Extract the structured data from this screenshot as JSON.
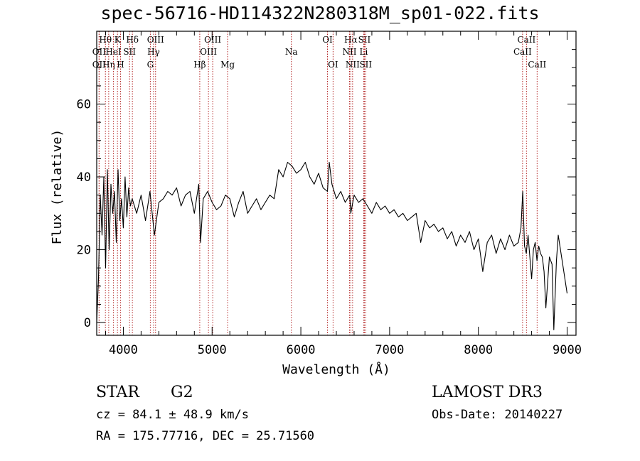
{
  "chart_data": {
    "type": "line",
    "title": "spec-56716-HD114322N280318M_sp01-022.fits",
    "xlabel": "Wavelength (Å)",
    "ylabel": "Flux (relative)",
    "xlim": [
      3700,
      9100
    ],
    "ylim": [
      -3.5,
      80
    ],
    "xticks": [
      4000,
      5000,
      6000,
      7000,
      8000,
      9000
    ],
    "xtick_labels": [
      "4000",
      "5000",
      "6000",
      "7000",
      "8000",
      "9000"
    ],
    "yticks": [
      0,
      20,
      40,
      60
    ],
    "ytick_labels": [
      "0",
      "20",
      "40",
      "60"
    ],
    "series": [
      {
        "name": "spectrum",
        "x": [
          3700,
          3720,
          3740,
          3760,
          3780,
          3800,
          3820,
          3840,
          3860,
          3880,
          3900,
          3920,
          3940,
          3960,
          3980,
          4000,
          4020,
          4040,
          4060,
          4080,
          4100,
          4150,
          4200,
          4250,
          4300,
          4350,
          4400,
          4450,
          4500,
          4550,
          4600,
          4650,
          4700,
          4750,
          4800,
          4850,
          4870,
          4900,
          4950,
          5000,
          5050,
          5100,
          5150,
          5200,
          5250,
          5300,
          5350,
          5400,
          5450,
          5500,
          5550,
          5600,
          5650,
          5700,
          5750,
          5800,
          5850,
          5900,
          5950,
          6000,
          6050,
          6100,
          6150,
          6200,
          6250,
          6300,
          6320,
          6350,
          6400,
          6450,
          6500,
          6550,
          6563,
          6600,
          6650,
          6700,
          6750,
          6800,
          6850,
          6900,
          6950,
          7000,
          7050,
          7100,
          7150,
          7200,
          7250,
          7300,
          7350,
          7400,
          7450,
          7500,
          7550,
          7600,
          7650,
          7700,
          7750,
          7800,
          7850,
          7900,
          7950,
          8000,
          8050,
          8100,
          8150,
          8200,
          8250,
          8300,
          8350,
          8400,
          8450,
          8480,
          8500,
          8520,
          8540,
          8560,
          8600,
          8620,
          8640,
          8660,
          8680,
          8700,
          8720,
          8740,
          8760,
          8800,
          8830,
          8850,
          8880,
          8900,
          8950,
          9000
        ],
        "values": [
          0,
          12,
          35,
          24,
          40,
          15,
          42,
          20,
          38,
          30,
          36,
          22,
          42,
          28,
          34,
          26,
          40,
          29,
          37,
          32,
          34,
          30,
          35,
          28,
          36,
          24,
          33,
          34,
          36,
          35,
          37,
          32,
          35,
          36,
          30,
          38,
          22,
          34,
          36,
          33,
          31,
          32,
          35,
          34,
          29,
          33,
          36,
          30,
          32,
          34,
          31,
          33,
          35,
          34,
          42,
          40,
          44,
          43,
          41,
          42,
          44,
          40,
          38,
          41,
          37,
          36,
          44,
          38,
          34,
          36,
          33,
          35,
          30,
          35,
          33,
          34,
          32,
          30,
          33,
          31,
          32,
          30,
          31,
          29,
          30,
          28,
          29,
          30,
          22,
          28,
          26,
          27,
          25,
          26,
          23,
          25,
          21,
          24,
          22,
          25,
          20,
          23,
          14,
          22,
          24,
          19,
          23,
          20,
          24,
          21,
          22,
          26,
          36,
          21,
          19,
          24,
          12,
          20,
          22,
          17,
          21,
          19,
          18,
          14,
          4,
          18,
          16,
          -2,
          17,
          24,
          16,
          8
        ]
      }
    ],
    "lines": [
      {
        "name": "Hθ",
        "x": 3798,
        "row": 1
      },
      {
        "name": "OII",
        "x": 3727,
        "row": 2
      },
      {
        "name": "OII",
        "x": 3727,
        "row": 3
      },
      {
        "name": "Hη",
        "x": 3835,
        "row": 3
      },
      {
        "name": "HeI",
        "x": 3889,
        "row": 2
      },
      {
        "name": "K",
        "x": 3934,
        "row": 1
      },
      {
        "name": "H",
        "x": 3968,
        "row": 3
      },
      {
        "name": "SII",
        "x": 4070,
        "row": 2
      },
      {
        "name": "Hδ",
        "x": 4102,
        "row": 1
      },
      {
        "name": "OIII",
        "x": 4363,
        "row": 1
      },
      {
        "name": "Hγ",
        "x": 4341,
        "row": 2
      },
      {
        "name": "G",
        "x": 4304,
        "row": 3
      },
      {
        "name": "Hβ",
        "x": 4861,
        "row": 3
      },
      {
        "name": "OIII",
        "x": 5007,
        "row": 1
      },
      {
        "name": "OIII",
        "x": 4959,
        "row": 2
      },
      {
        "name": "Mg",
        "x": 5175,
        "row": 3
      },
      {
        "name": "Na",
        "x": 5893,
        "row": 2
      },
      {
        "name": "OI",
        "x": 6300,
        "row": 1
      },
      {
        "name": "OI",
        "x": 6363,
        "row": 3
      },
      {
        "name": "Hα",
        "x": 6563,
        "row": 1
      },
      {
        "name": "NII",
        "x": 6548,
        "row": 2
      },
      {
        "name": "NII",
        "x": 6583,
        "row": 3
      },
      {
        "name": "SII",
        "x": 6716,
        "row": 1
      },
      {
        "name": "Li",
        "x": 6708,
        "row": 2
      },
      {
        "name": "SII",
        "x": 6731,
        "row": 3
      },
      {
        "name": "CaII",
        "x": 8542,
        "row": 1
      },
      {
        "name": "CaII",
        "x": 8498,
        "row": 2
      },
      {
        "name": "CaII",
        "x": 8662,
        "row": 3
      }
    ]
  },
  "info": {
    "class": "STAR",
    "subclass": "G2",
    "survey": "LAMOST DR3",
    "cz": "cz = 84.1 ± 48.9 km/s",
    "obs_date": "Obs-Date: 20140227",
    "coords": "RA = 175.77716, DEC =  25.71560"
  },
  "colors": {
    "axes": "#000000",
    "spectrum": "#000000",
    "lines": "#b22222"
  }
}
